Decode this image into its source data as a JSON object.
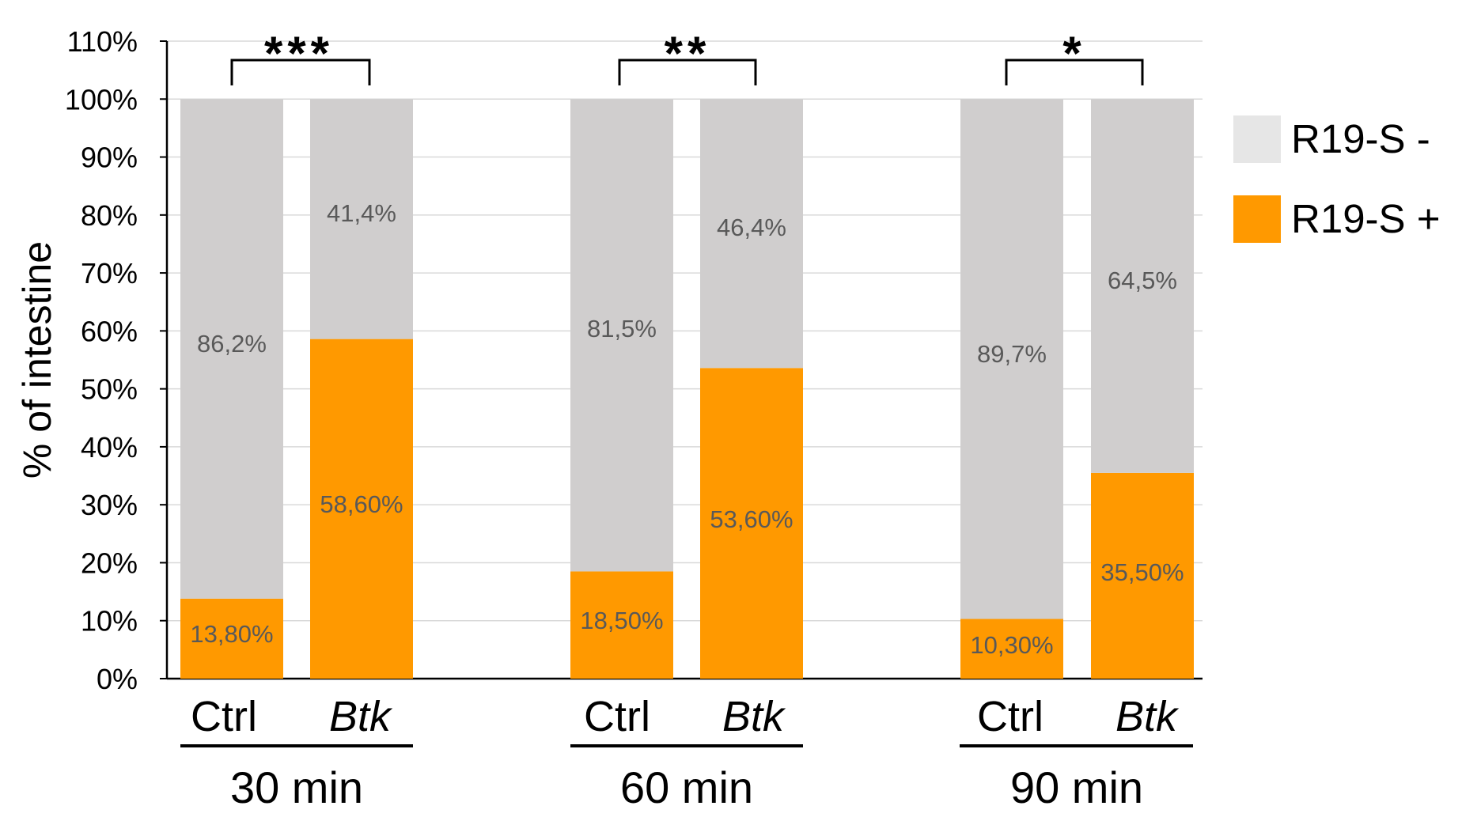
{
  "chart_data": {
    "type": "bar",
    "stacked": true,
    "percent_stacked": true,
    "ylabel": "% of intestine",
    "ylim": [
      0,
      110
    ],
    "yticks": [
      0,
      10,
      20,
      30,
      40,
      50,
      60,
      70,
      80,
      90,
      100,
      110
    ],
    "ytick_labels": [
      "0%",
      "10%",
      "20%",
      "30%",
      "40%",
      "50%",
      "60%",
      "70%",
      "80%",
      "90%",
      "100%",
      "110%"
    ],
    "grid": true,
    "legend_position": "right",
    "groups": [
      {
        "label": "30 min",
        "significance": "***"
      },
      {
        "label": "60 min",
        "significance": "**"
      },
      {
        "label": "90 min",
        "significance": "*"
      }
    ],
    "categories": [
      {
        "label": "Ctrl",
        "italic": false,
        "group": 0
      },
      {
        "label": "Btk",
        "italic": true,
        "group": 0
      },
      {
        "label": "Ctrl",
        "italic": false,
        "group": 1
      },
      {
        "label": "Btk",
        "italic": true,
        "group": 1
      },
      {
        "label": "Ctrl",
        "italic": false,
        "group": 2
      },
      {
        "label": "Btk",
        "italic": true,
        "group": 2
      }
    ],
    "series": [
      {
        "name": "R19-S +",
        "color": "#ff9900",
        "values": [
          13.8,
          58.6,
          18.5,
          53.6,
          10.3,
          35.5
        ],
        "data_labels": [
          "13,80%",
          "58,60%",
          "18,50%",
          "53,60%",
          "10,30%",
          "35,50%"
        ]
      },
      {
        "name": "R19-S -",
        "color": "#d0cece",
        "values": [
          86.2,
          41.4,
          81.5,
          46.4,
          89.7,
          64.5
        ],
        "data_labels": [
          "86,2%",
          "41,4%",
          "81,5%",
          "46,4%",
          "89,7%",
          "64,5%"
        ]
      }
    ],
    "legend": [
      {
        "name": "R19-S -",
        "color": "#e6e6e6"
      },
      {
        "name": "R19-S +",
        "color": "#ff9900"
      }
    ]
  }
}
